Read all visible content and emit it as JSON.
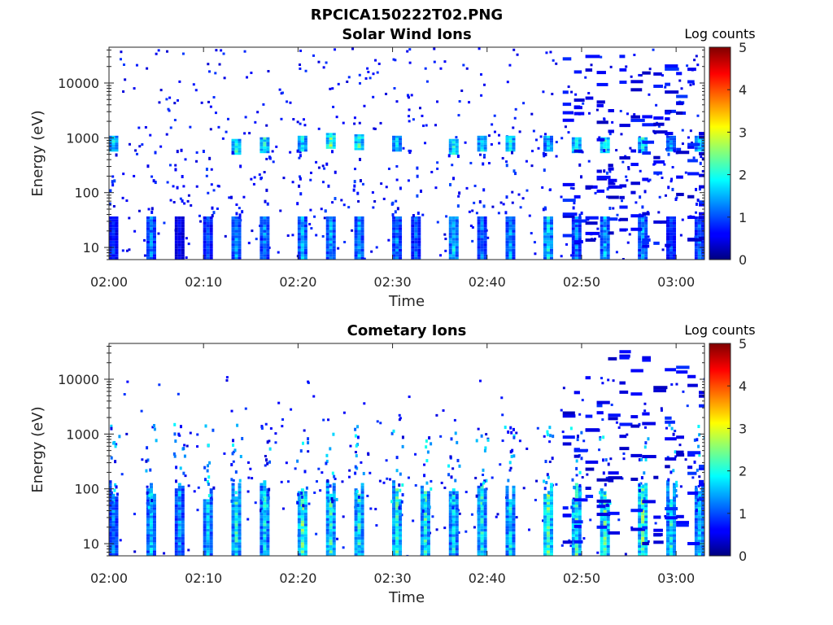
{
  "figure": {
    "title": "RPCICA150222T02.PNG"
  },
  "chart_data": [
    {
      "type": "heatmap",
      "title": "Solar Wind Ions",
      "xlabel": "Time",
      "ylabel": "Energy (eV)",
      "x_ticks": [
        "02:00",
        "02:10",
        "02:20",
        "02:30",
        "02:40",
        "02:50",
        "03:00"
      ],
      "xlim": [
        "02:00",
        "03:03"
      ],
      "y_scale": "log",
      "y_ticks": [
        10,
        100,
        1000,
        10000
      ],
      "y_tick_labels": [
        "10",
        "100",
        "1000",
        "10000"
      ],
      "ylim": [
        6,
        45000
      ],
      "colorbar": {
        "title": "Log counts",
        "ticks": [
          0,
          1,
          2,
          3,
          4,
          5
        ],
        "tick_labels": [
          "0",
          "1",
          "2",
          "3",
          "4",
          "5"
        ],
        "colormap": "jet"
      },
      "sweeps": [
        {
          "time": "02:00",
          "low_counts": 1.1,
          "peak_energy": 800,
          "peak_counts": 2.2
        },
        {
          "time": "02:04",
          "low_counts": 1.6
        },
        {
          "time": "02:07",
          "low_counts": 0.8
        },
        {
          "time": "02:10",
          "low_counts": 1.3
        },
        {
          "time": "02:13",
          "low_counts": 1.8,
          "peak_energy": 700,
          "peak_counts": 2.4
        },
        {
          "time": "02:16",
          "low_counts": 1.7,
          "peak_energy": 750,
          "peak_counts": 2.4
        },
        {
          "time": "02:20",
          "low_counts": 1.9,
          "peak_energy": 800,
          "peak_counts": 2.2
        },
        {
          "time": "02:23",
          "low_counts": 1.8,
          "peak_energy": 900,
          "peak_counts": 2.9
        },
        {
          "time": "02:26",
          "low_counts": 1.8,
          "peak_energy": 850,
          "peak_counts": 2.6
        },
        {
          "time": "02:30",
          "low_counts": 1.7,
          "peak_energy": 800,
          "peak_counts": 2.0
        },
        {
          "time": "02:32",
          "low_counts": 1.4
        },
        {
          "time": "02:36",
          "low_counts": 2.2,
          "peak_energy": 700,
          "peak_counts": 2.4
        },
        {
          "time": "02:39",
          "low_counts": 1.5,
          "peak_energy": 800,
          "peak_counts": 2.2
        },
        {
          "time": "02:42",
          "low_counts": 1.8,
          "peak_energy": 800,
          "peak_counts": 2.3
        },
        {
          "time": "02:46",
          "low_counts": 2.3,
          "peak_energy": 800,
          "peak_counts": 2.0
        },
        {
          "time": "02:49",
          "low_counts": 1.6,
          "peak_energy": 750,
          "peak_counts": 2.6
        },
        {
          "time": "02:52",
          "low_counts": 1.9,
          "peak_energy": 750,
          "peak_counts": 2.6
        },
        {
          "time": "02:56",
          "low_counts": 1.8,
          "peak_energy": 750,
          "peak_counts": 2.3
        },
        {
          "time": "02:59",
          "low_counts": 1.3,
          "peak_energy": 800,
          "peak_counts": 1.7
        },
        {
          "time": "03:02",
          "low_counts": 1.5,
          "peak_energy": 800,
          "peak_counts": 2.0
        }
      ]
    },
    {
      "type": "heatmap",
      "title": "Cometary Ions",
      "xlabel": "Time",
      "ylabel": "Energy (eV)",
      "x_ticks": [
        "02:00",
        "02:10",
        "02:20",
        "02:30",
        "02:40",
        "02:50",
        "03:00"
      ],
      "xlim": [
        "02:00",
        "03:03"
      ],
      "y_scale": "log",
      "y_ticks": [
        10,
        100,
        1000,
        10000
      ],
      "y_tick_labels": [
        "10",
        "100",
        "1000",
        "10000"
      ],
      "ylim": [
        6,
        45000
      ],
      "colorbar": {
        "title": "Log counts",
        "ticks": [
          0,
          1,
          2,
          3,
          4,
          5
        ],
        "tick_labels": [
          "0",
          "1",
          "2",
          "3",
          "4",
          "5"
        ],
        "colormap": "jet"
      },
      "sweeps": [
        {
          "time": "02:00",
          "low_counts": 1.6
        },
        {
          "time": "02:04",
          "low_counts": 2.0
        },
        {
          "time": "02:07",
          "low_counts": 1.8
        },
        {
          "time": "02:10",
          "low_counts": 2.0
        },
        {
          "time": "02:13",
          "low_counts": 2.4
        },
        {
          "time": "02:16",
          "low_counts": 2.2
        },
        {
          "time": "02:20",
          "low_counts": 2.8
        },
        {
          "time": "02:23",
          "low_counts": 2.6
        },
        {
          "time": "02:26",
          "low_counts": 2.4
        },
        {
          "time": "02:30",
          "low_counts": 2.6
        },
        {
          "time": "02:33",
          "low_counts": 2.5
        },
        {
          "time": "02:36",
          "low_counts": 2.2
        },
        {
          "time": "02:39",
          "low_counts": 2.4
        },
        {
          "time": "02:42",
          "low_counts": 2.3
        },
        {
          "time": "02:46",
          "low_counts": 2.9
        },
        {
          "time": "02:49",
          "low_counts": 2.7
        },
        {
          "time": "02:52",
          "low_counts": 2.8
        },
        {
          "time": "02:56",
          "low_counts": 3.0
        },
        {
          "time": "02:59",
          "low_counts": 2.4
        },
        {
          "time": "03:02",
          "low_counts": 2.2
        }
      ]
    }
  ]
}
